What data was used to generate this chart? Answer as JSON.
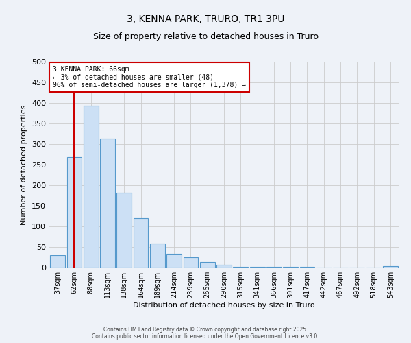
{
  "title": "3, KENNA PARK, TRURO, TR1 3PU",
  "subtitle": "Size of property relative to detached houses in Truro",
  "xlabel": "Distribution of detached houses by size in Truro",
  "ylabel": "Number of detached properties",
  "bar_labels": [
    "37sqm",
    "62sqm",
    "88sqm",
    "113sqm",
    "138sqm",
    "164sqm",
    "189sqm",
    "214sqm",
    "239sqm",
    "265sqm",
    "290sqm",
    "315sqm",
    "341sqm",
    "366sqm",
    "391sqm",
    "417sqm",
    "442sqm",
    "467sqm",
    "492sqm",
    "518sqm",
    "543sqm"
  ],
  "bar_values": [
    30,
    268,
    393,
    313,
    182,
    120,
    59,
    33,
    25,
    13,
    6,
    2,
    1,
    1,
    1,
    1,
    0,
    0,
    0,
    0,
    3
  ],
  "bar_color": "#cce0f5",
  "bar_edge_color": "#5599cc",
  "vline_x_index": 1,
  "vline_color": "#cc0000",
  "annotation_text": "3 KENNA PARK: 66sqm\n← 3% of detached houses are smaller (48)\n96% of semi-detached houses are larger (1,378) →",
  "annotation_box_color": "#ffffff",
  "annotation_box_edge_color": "#cc0000",
  "ylim": [
    0,
    500
  ],
  "yticks": [
    0,
    50,
    100,
    150,
    200,
    250,
    300,
    350,
    400,
    450,
    500
  ],
  "bg_color": "#eef2f8",
  "footer_line1": "Contains HM Land Registry data © Crown copyright and database right 2025.",
  "footer_line2": "Contains public sector information licensed under the Open Government Licence v3.0."
}
